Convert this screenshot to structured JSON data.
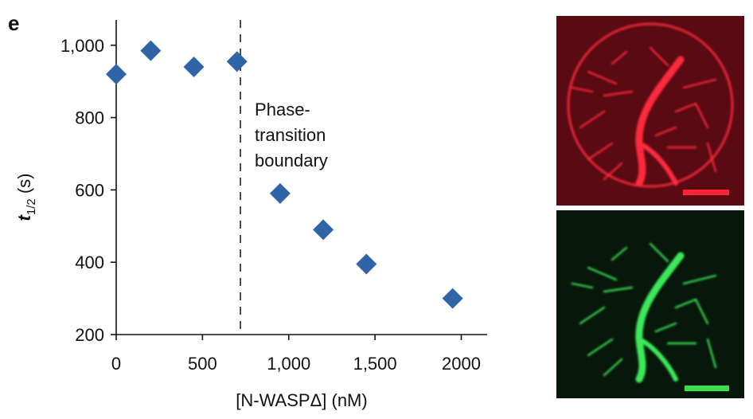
{
  "panel_label": "e",
  "chart_data": {
    "type": "scatter",
    "xlabel": "[N-WASPΔ] (nM)",
    "ylabel": {
      "symbol": "t",
      "subscript": "1/2",
      "unit": " (s)"
    },
    "xlim": [
      0,
      2150
    ],
    "ylim": [
      200,
      1070
    ],
    "x_ticks": [
      0,
      500,
      1000,
      1500,
      2000
    ],
    "x_tick_labels": [
      "0",
      "500",
      "1,000",
      "1,500",
      "2000"
    ],
    "y_ticks": [
      200,
      400,
      600,
      800,
      1000
    ],
    "y_tick_labels": [
      "200",
      "400",
      "600",
      "800",
      "1,000"
    ],
    "series": [
      {
        "marker": "diamond",
        "color": "#2f64a6",
        "points": [
          {
            "x": 0,
            "y": 920
          },
          {
            "x": 200,
            "y": 985
          },
          {
            "x": 450,
            "y": 940
          },
          {
            "x": 700,
            "y": 955
          },
          {
            "x": 950,
            "y": 590
          },
          {
            "x": 1200,
            "y": 490
          },
          {
            "x": 1450,
            "y": 395
          },
          {
            "x": 1950,
            "y": 300
          }
        ]
      }
    ],
    "reference_line": {
      "orientation": "vertical",
      "x": 720,
      "style": "dashed",
      "label_lines": [
        "Phase-",
        "transition",
        "boundary"
      ]
    },
    "grid": false,
    "legend": "none"
  },
  "micrographs": [
    {
      "name": "red-channel",
      "background": "#5a0a12",
      "filament_color": "#ff2a3d",
      "scale_bar_color": "#ff2436"
    },
    {
      "name": "green-channel",
      "background": "#07180a",
      "filament_color": "#3ee85a",
      "scale_bar_color": "#3fdc4c"
    }
  ]
}
